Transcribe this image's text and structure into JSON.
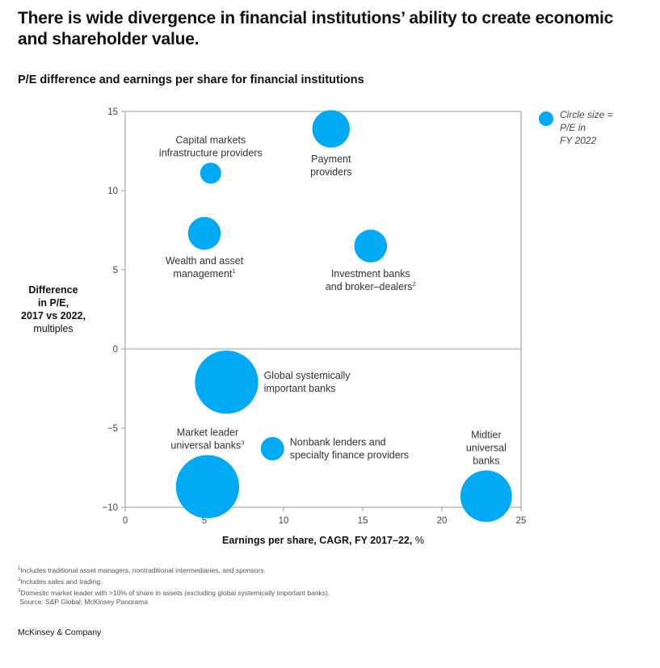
{
  "title": "There is wide divergence in financial institutions’ ability to create economic and shareholder value.",
  "subtitle": "P/E difference and earnings per share for financial institutions",
  "y_axis_label": {
    "line1": "Difference",
    "line2": "in P/E,",
    "line3": "2017 vs 2022,",
    "line4": "multiples"
  },
  "x_axis_label": {
    "bold": "Earnings per share, CAGR, FY 2017–22,",
    "unit": "%"
  },
  "legend": {
    "line1": "Circle size =",
    "line2": "P/E in",
    "line3": "FY 2022"
  },
  "footnotes": [
    {
      "mark": "1",
      "text": "Includes traditional asset managers, nontraditional intermediaries, and sponsors."
    },
    {
      "mark": "2",
      "text": "Includes sales and trading."
    },
    {
      "mark": "3",
      "text": "Domestic market leader with >10% of share in assets (excluding global systemically important banks)."
    }
  ],
  "source": "Source: S&P Global; McKinsey Panorama",
  "brand": "McKinsey & Company",
  "colors": {
    "bubble": "#00a9f4",
    "axis": "#9a9a9a",
    "zero_line": "#9a9a9a"
  },
  "chart_data": {
    "type": "scatter",
    "title": "P/E difference and earnings per share for financial institutions",
    "xlabel": "Earnings per share, CAGR, FY 2017–22, %",
    "ylabel": "Difference in P/E, 2017 vs 2022, multiples",
    "xlim": [
      0,
      25
    ],
    "ylim": [
      -10,
      15
    ],
    "xticks": [
      0,
      5,
      10,
      15,
      20,
      25
    ],
    "yticks": [
      -10,
      -5,
      0,
      5,
      10,
      15
    ],
    "ytick_labels": [
      "−10",
      "−5",
      "0",
      "5",
      "10",
      "15"
    ],
    "size_meaning": "P/E in FY 2022",
    "series": [
      {
        "name": "Capital markets infrastructure providers",
        "label_lines": [
          "Capital markets",
          "infrastructure providers"
        ],
        "sup": "",
        "label_pos": "above",
        "x": 5.4,
        "y": 11.1,
        "size": 9
      },
      {
        "name": "Payment providers",
        "label_lines": [
          "Payment",
          "providers"
        ],
        "sup": "",
        "label_pos": "below",
        "x": 13.0,
        "y": 13.9,
        "size": 16
      },
      {
        "name": "Wealth and asset management",
        "label_lines": [
          "Wealth and asset",
          "management"
        ],
        "sup": "1",
        "label_pos": "below",
        "x": 5.0,
        "y": 7.3,
        "size": 14
      },
      {
        "name": "Investment banks and broker–dealers",
        "label_lines": [
          "Investment banks",
          "and broker–dealers"
        ],
        "sup": "2",
        "label_pos": "below",
        "x": 15.5,
        "y": 6.5,
        "size": 14
      },
      {
        "name": "Global systemically important banks",
        "label_lines": [
          "Global systemically",
          "important banks"
        ],
        "sup": "",
        "label_pos": "right",
        "x": 6.4,
        "y": -2.1,
        "size": 27
      },
      {
        "name": "Nonbank lenders and specialty finance providers",
        "label_lines": [
          "Nonbank lenders and",
          "specialty finance providers"
        ],
        "sup": "",
        "label_pos": "right",
        "x": 9.3,
        "y": -6.3,
        "size": 10
      },
      {
        "name": "Market leader universal banks",
        "label_lines": [
          "Market leader",
          "universal banks"
        ],
        "sup": "3",
        "label_pos": "above",
        "x": 5.2,
        "y": -8.7,
        "size": 27
      },
      {
        "name": "Midtier universal banks",
        "label_lines": [
          "Midtier",
          "universal",
          "banks"
        ],
        "sup": "",
        "label_pos": "above",
        "x": 22.8,
        "y": -9.3,
        "size": 22
      }
    ]
  }
}
